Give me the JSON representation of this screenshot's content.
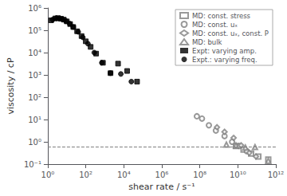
{
  "chart_data": {
    "type": "scatter",
    "title": "",
    "xlabel": "shear rate / s⁻¹",
    "ylabel": "viscosity / cP",
    "log": true,
    "grid": false,
    "legend": "upper right",
    "xlim": [
      1,
      1000000000000
    ],
    "ylim": [
      0.1,
      1000000
    ],
    "xticks": [
      {
        "value": 1,
        "label": "10⁰"
      },
      {
        "value": 100,
        "label": "10²"
      },
      {
        "value": 10000,
        "label": "10⁴"
      },
      {
        "value": 1000000,
        "label": "10⁶"
      },
      {
        "value": 100000000,
        "label": "10⁸"
      },
      {
        "value": 10000000000,
        "label": "10¹⁰"
      },
      {
        "value": 1000000000000,
        "label": "10¹²"
      }
    ],
    "yticks": [
      {
        "value": 0.1,
        "label": "10⁻¹"
      },
      {
        "value": 1,
        "label": "10⁰"
      },
      {
        "value": 10,
        "label": "10¹"
      },
      {
        "value": 100,
        "label": "10²"
      },
      {
        "value": 1000,
        "label": "10³"
      },
      {
        "value": 10000,
        "label": "10⁴"
      },
      {
        "value": 100000,
        "label": "10⁵"
      },
      {
        "value": 1000000,
        "label": "10⁶"
      }
    ],
    "hlines": [
      {
        "y": 0.6,
        "color": "gray",
        "line_style": "dashed"
      }
    ],
    "series": [
      {
        "name": "MD: const. stress",
        "color": "gray",
        "marker": "emptyRect",
        "x": [
          8000000000.0,
          20000000000.0,
          50000000000.0,
          120000000000.0,
          400000000000.0
        ],
        "values": [
          0.65,
          0.45,
          0.3,
          0.22,
          0.16
        ]
      },
      {
        "name": "MD: const. uₓ",
        "color": "gray",
        "marker": "emptyCircle",
        "x": [
          70000000.0,
          130000000.0,
          300000000.0,
          700000000.0,
          2000000000.0,
          5000000000.0,
          12000000000.0,
          30000000000.0
        ],
        "values": [
          14,
          11,
          5.5,
          3.2,
          1.8,
          1.0,
          0.65,
          0.38
        ]
      },
      {
        "name": "MD: const. uₓ, const. P",
        "color": "gray",
        "marker": "emptyDiamond",
        "x": [
          800000000.0,
          2000000000.0,
          6000000000.0,
          15000000000.0,
          40000000000.0,
          90000000000.0
        ],
        "values": [
          4.5,
          2.8,
          1.5,
          0.7,
          0.32,
          0.22
        ]
      },
      {
        "name": "MD: bulk",
        "color": "gray",
        "marker": "emptyTriangle",
        "x": [
          2500000000.0,
          8000000000.0,
          25000000000.0,
          80000000000.0,
          400000000000.0
        ],
        "values": [
          0.75,
          0.68,
          0.55,
          0.58,
          0.14
        ]
      },
      {
        "name": "Expt: varying amp.",
        "color": "black",
        "marker": "rect",
        "x": [
          1.5,
          2.5,
          3.5,
          5.0,
          7.0,
          10,
          15,
          22,
          35,
          60,
          100,
          180,
          350,
          800,
          2000,
          5000,
          15000,
          50000
        ],
        "values": [
          280000,
          340000,
          350000,
          330000,
          300000,
          250000,
          190000,
          140000,
          90000,
          55000,
          32000,
          18000,
          9000,
          3500,
          1200,
          3200,
          1500,
          500
        ]
      },
      {
        "name": "Expt.: varying freq.",
        "color": "black",
        "marker": "circle",
        "x": [
          1.8,
          2.8,
          4.0,
          6.0,
          9.0,
          14,
          22,
          40,
          70,
          130,
          280,
          700,
          2000,
          7000,
          25000
        ],
        "values": [
          300000,
          350000,
          340000,
          310000,
          260000,
          200000,
          140000,
          85000,
          48000,
          25000,
          10000,
          3500,
          1200,
          1100,
          500
        ]
      }
    ]
  }
}
